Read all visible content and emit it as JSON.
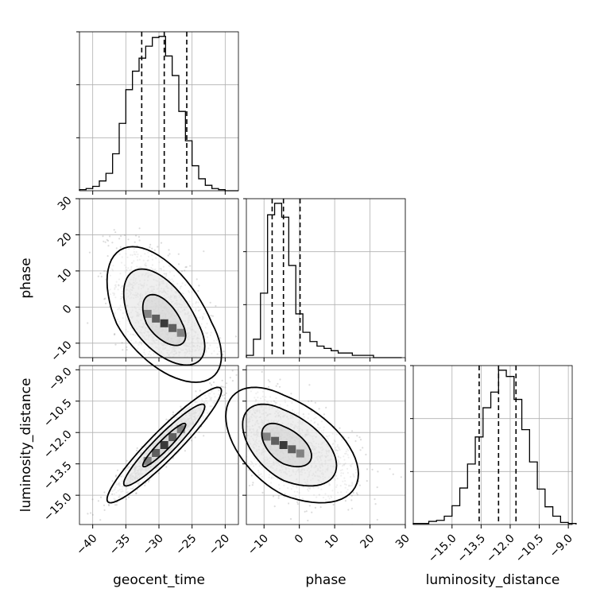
{
  "chart_data": {
    "type": "corner",
    "parameters": [
      "geocent_time",
      "phase",
      "luminosity_distance"
    ],
    "grid": true,
    "panels": [
      {
        "kind": "histogram",
        "param": "geocent_time",
        "xlim": [
          -42,
          -18
        ],
        "bin_edges": [
          -42,
          -41,
          -40,
          -39,
          -38,
          -37,
          -36,
          -35,
          -34,
          -33,
          -32,
          -31,
          -30,
          -29,
          -28,
          -27,
          -26,
          -25,
          -24,
          -23,
          -22,
          -21,
          -20,
          -19,
          -18
        ],
        "counts": [
          1,
          2,
          4,
          9,
          16,
          34,
          62,
          93,
          110,
          122,
          133,
          141,
          142,
          124,
          106,
          73,
          46,
          23,
          11,
          5,
          2,
          1,
          0,
          0
        ],
        "quantiles": [
          -32.6,
          -29.2,
          -25.8
        ]
      },
      {
        "kind": "histogram",
        "param": "phase",
        "xlim": [
          -15,
          30
        ],
        "bin_edges": [
          -15,
          -13,
          -11,
          -9,
          -7,
          -5,
          -3,
          -1,
          1,
          3,
          5,
          7,
          9,
          11,
          13,
          15,
          17,
          19,
          21,
          23,
          25,
          27,
          29
        ],
        "counts": [
          1,
          8,
          28,
          62,
          67,
          61,
          40,
          19,
          11,
          7,
          5,
          4,
          3,
          2,
          2,
          1,
          1,
          1,
          0,
          0,
          0,
          0
        ],
        "quantiles": [
          -7.7,
          -4.5,
          0.2
        ]
      },
      {
        "kind": "histogram",
        "param": "luminosity_distance",
        "xlim": [
          -17,
          -8.8
        ],
        "bin_edges": [
          -17,
          -16.6,
          -16.2,
          -15.8,
          -15.4,
          -15,
          -14.6,
          -14.2,
          -13.8,
          -13.4,
          -13,
          -12.6,
          -12.2,
          -11.8,
          -11.4,
          -11,
          -10.6,
          -10.2,
          -9.8,
          -9.4,
          -9,
          -8.6
        ],
        "counts": [
          1,
          1,
          3,
          4,
          8,
          18,
          35,
          58,
          84,
          112,
          127,
          148,
          142,
          120,
          91,
          60,
          34,
          17,
          8,
          2,
          1
        ],
        "quantiles": [
          -13.6,
          -12.6,
          -11.7
        ]
      },
      {
        "kind": "2d",
        "x": "geocent_time",
        "y": "phase",
        "xlim": [
          -42,
          -18
        ],
        "ylim": [
          -14,
          30
        ],
        "center": [
          -29.2,
          -4.5
        ]
      },
      {
        "kind": "2d",
        "x": "geocent_time",
        "y": "luminosity_distance",
        "xlim": [
          -42,
          -18
        ],
        "ylim": [
          -16.4,
          -8.8
        ],
        "center": [
          -29.2,
          -12.6
        ]
      },
      {
        "kind": "2d",
        "x": "phase",
        "y": "luminosity_distance",
        "xlim": [
          -15,
          30
        ],
        "ylim": [
          -16.4,
          -8.8
        ],
        "center": [
          -4.5,
          -12.6
        ]
      }
    ],
    "tick_labels": {
      "geocent_time": [
        "−40",
        "−35",
        "−30",
        "−25",
        "−20"
      ],
      "phase_x": [
        "−10",
        "0",
        "10",
        "20",
        "30"
      ],
      "phase_y": [
        "−10",
        "0",
        "10",
        "20",
        "30"
      ],
      "luminosity_distance_x": [
        "−15.0",
        "−13.5",
        "−12.0",
        "−10.5",
        "−9.0"
      ],
      "luminosity_distance_y": [
        "−9.0",
        "−10.5",
        "−12.0",
        "−13.5",
        "−15.0"
      ]
    },
    "tick_values": {
      "geocent_time": [
        -40,
        -35,
        -30,
        -25,
        -20
      ],
      "phase": [
        -10,
        0,
        10,
        20,
        30
      ],
      "luminosity_distance": [
        -15.0,
        -13.5,
        -12.0,
        -10.5,
        -9.0
      ]
    },
    "axis_labels": {
      "bottom": [
        "geocent_time",
        "phase",
        "luminosity_distance"
      ],
      "left": [
        "phase",
        "luminosity_distance"
      ]
    },
    "colors": {
      "line": "#000000",
      "grid": "#b0b0b0",
      "points": "#808080"
    }
  }
}
